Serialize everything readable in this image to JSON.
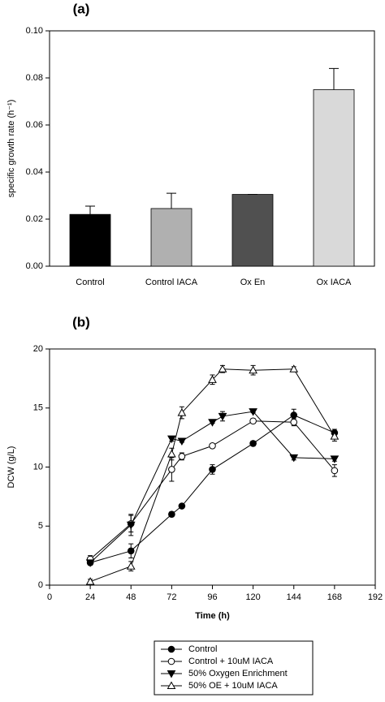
{
  "chart_data": [
    {
      "type": "bar",
      "title": "(a)",
      "y_label": "specific growth rate (h⁻¹)",
      "categories": [
        "Control",
        "Control IACA",
        "Ox En",
        "Ox IACA"
      ],
      "values": [
        0.022,
        0.0245,
        0.0305,
        0.075
      ],
      "errors": [
        0.0035,
        0.0065,
        0,
        0.009
      ],
      "colors": [
        "#000000",
        "#b0b0b0",
        "#505050",
        "#d9d9d9"
      ],
      "ylim": [
        0,
        0.1
      ],
      "yticks": [
        {
          "value": 0,
          "label": "0.00"
        },
        {
          "value": 0.02,
          "label": "0.02"
        },
        {
          "value": 0.04,
          "label": "0.04"
        },
        {
          "value": 0.06,
          "label": "0.06"
        },
        {
          "value": 0.08,
          "label": "0.08"
        },
        {
          "value": 0.1,
          "label": "0.10"
        }
      ]
    },
    {
      "type": "line",
      "title": "(b)",
      "x_label": "Time (h)",
      "y_label": "DCW (g/L)",
      "xlim": [
        0,
        192
      ],
      "xticks": [
        0,
        24,
        48,
        72,
        96,
        120,
        144,
        168,
        192
      ],
      "ylim": [
        0,
        20
      ],
      "yticks": [
        0,
        5,
        10,
        15,
        20
      ],
      "legend": "bottom",
      "series": [
        {
          "name": "Control",
          "color": "#000000",
          "marker": "circle",
          "filled": true,
          "x": [
            24,
            48,
            72,
            78,
            96,
            120,
            144,
            168
          ],
          "values": [
            1.9,
            2.9,
            6.0,
            6.7,
            9.8,
            12.0,
            14.4,
            12.9
          ],
          "errors": [
            0.2,
            0.6,
            0.2,
            0.1,
            0.4,
            0.2,
            0.5,
            0.3
          ]
        },
        {
          "name": "Control + 10uM IACA",
          "color": "#000000",
          "marker": "circle",
          "filled": false,
          "x": [
            24,
            48,
            72,
            78,
            96,
            120,
            144,
            168
          ],
          "values": [
            2.2,
            5.2,
            9.8,
            10.9,
            11.8,
            13.9,
            13.8,
            9.7
          ],
          "errors": [
            0.3,
            0.7,
            1.0,
            0.3,
            0.1,
            0.2,
            0.3,
            0.5
          ]
        },
        {
          "name": "50% Oxygen Enrichment",
          "color": "#000000",
          "marker": "triangle-down",
          "filled": true,
          "x": [
            24,
            48,
            72,
            78,
            96,
            102,
            120,
            144,
            168
          ],
          "values": [
            1.9,
            5.1,
            12.4,
            12.2,
            13.8,
            14.3,
            14.7,
            10.8,
            10.7
          ],
          "errors": [
            0.1,
            0.9,
            0.2,
            0.1,
            0.1,
            0.4,
            0.1,
            0.2,
            0.2
          ]
        },
        {
          "name": "50% OE + 10uM IACA",
          "color": "#000000",
          "marker": "triangle-up",
          "filled": false,
          "x": [
            24,
            48,
            72,
            78,
            96,
            102,
            120,
            144,
            168
          ],
          "values": [
            0.3,
            1.6,
            11.1,
            14.6,
            17.4,
            18.3,
            18.2,
            18.3,
            12.6
          ],
          "errors": [
            0.2,
            0.4,
            0.5,
            0.5,
            0.4,
            0.3,
            0.4,
            0.2,
            0.4
          ]
        }
      ]
    }
  ]
}
